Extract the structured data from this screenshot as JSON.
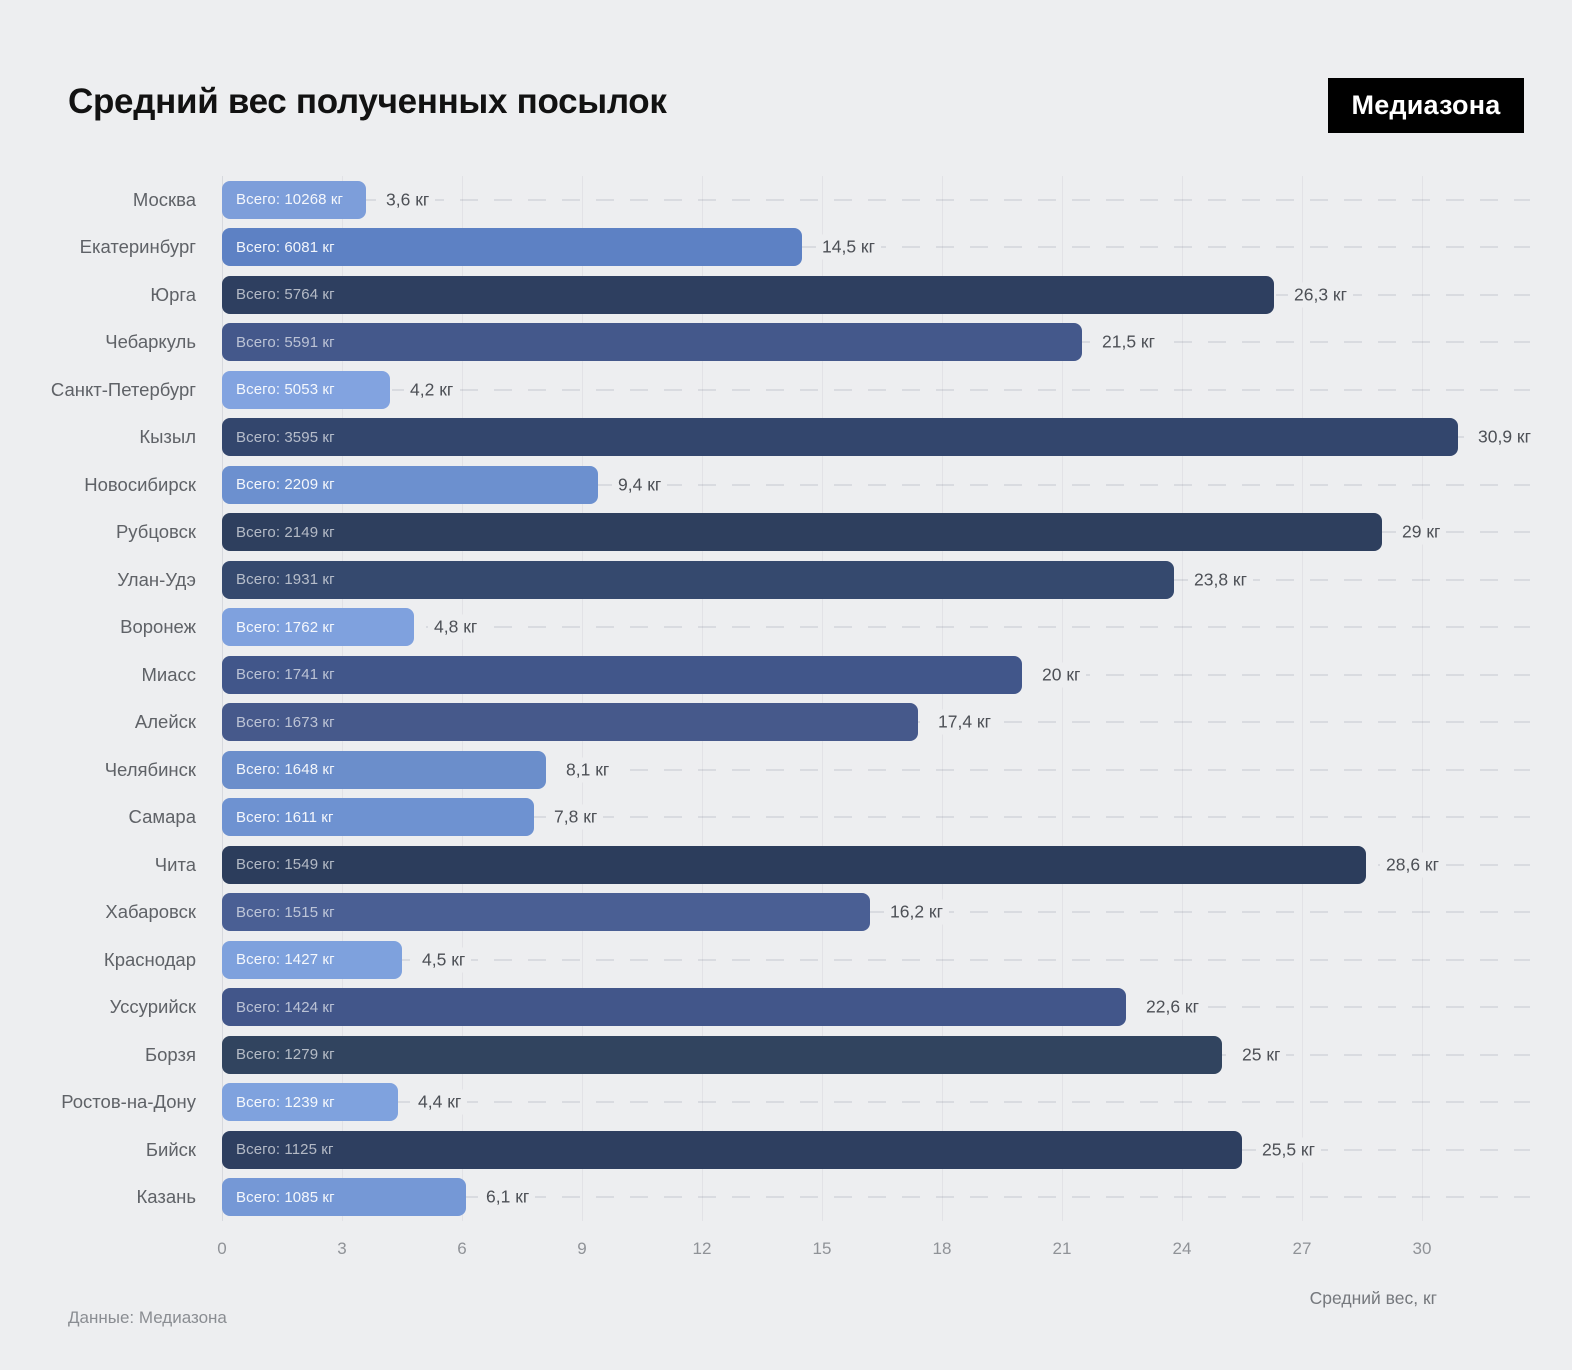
{
  "header": {
    "title": "Средний вес полученных посылок",
    "logo": "Медиазона"
  },
  "footer": {
    "source": "Данные: Медиазона"
  },
  "chart_data": {
    "type": "bar",
    "orientation": "horizontal",
    "title": "Средний вес полученных посылок",
    "xlabel": "Средний вес, кг",
    "xlim": [
      0,
      30
    ],
    "x_ticks": [
      0,
      3,
      6,
      9,
      12,
      15,
      18,
      21,
      24,
      27,
      30
    ],
    "grid": "dashed horizontal row lines and faint vertical tick lines",
    "categories": [
      "Москва",
      "Екатеринбург",
      "Юрга",
      "Чебаркуль",
      "Санкт-Петербург",
      "Кызыл",
      "Новосибирск",
      "Рубцовск",
      "Улан-Удэ",
      "Воронеж",
      "Миасс",
      "Алейск",
      "Челябинск",
      "Самара",
      "Чита",
      "Хабаровск",
      "Краснодар",
      "Уссурийск",
      "Борзя",
      "Ростов-на-Дону",
      "Бийск",
      "Казань"
    ],
    "values": [
      3.6,
      14.5,
      26.3,
      21.5,
      4.2,
      30.9,
      9.4,
      29,
      23.8,
      4.8,
      20,
      17.4,
      8.1,
      7.8,
      28.6,
      16.2,
      4.5,
      22.6,
      25,
      4.4,
      25.5,
      6.1
    ],
    "value_labels": [
      "3,6 кг",
      "14,5 кг",
      "26,3 кг",
      "21,5 кг",
      "4,2 кг",
      "30,9 кг",
      "9,4 кг",
      "29 кг",
      "23,8 кг",
      "4,8 кг",
      "20 кг",
      "17,4 кг",
      "8,1 кг",
      "7,8 кг",
      "28,6 кг",
      "16,2 кг",
      "4,5 кг",
      "22,6 кг",
      "25 кг",
      "4,4 кг",
      "25,5 кг",
      "6,1 кг"
    ],
    "totals_kg": [
      10268,
      6081,
      5764,
      5591,
      5053,
      3595,
      2209,
      2149,
      1931,
      1762,
      1741,
      1673,
      1648,
      1611,
      1549,
      1515,
      1427,
      1424,
      1279,
      1239,
      1125,
      1085
    ],
    "bar_labels": [
      "Всего: 10268 кг",
      "Всего: 6081 кг",
      "Всего: 5764 кг",
      "Всего: 5591 кг",
      "Всего: 5053 кг",
      "Всего: 3595 кг",
      "Всего: 2209 кг",
      "Всего: 2149 кг",
      "Всего: 1931 кг",
      "Всего: 1762 кг",
      "Всего: 1741 кг",
      "Всего: 1673 кг",
      "Всего: 1648 кг",
      "Всего: 1611 кг",
      "Всего: 1549 кг",
      "Всего: 1515 кг",
      "Всего: 1427 кг",
      "Всего: 1424 кг",
      "Всего: 1279 кг",
      "Всего: 1239 кг",
      "Всего: 1125 кг",
      "Всего: 1085 кг"
    ],
    "bar_colors": [
      "#7d9eda",
      "#5d81c4",
      "#2e3f60",
      "#44588b",
      "#82a3e0",
      "#33466d",
      "#6c90cf",
      "#2e3f5e",
      "#35496e",
      "#7fa1de",
      "#41568a",
      "#46598b",
      "#6b8ecb",
      "#6e92d1",
      "#2c3d5c",
      "#4a5f94",
      "#7ea1dd",
      "#42568a",
      "#31445f",
      "#7fa2de",
      "#2e3f60",
      "#7598d6"
    ],
    "legend": null
  },
  "colors": {
    "background": "#edeef0",
    "title_text": "#121212",
    "logo_background": "#000000",
    "logo_text": "#ffffff",
    "category_text": "#5f6267",
    "value_text": "#4d5056",
    "tick_text": "#8f9297",
    "bar_label_bright": "rgba(255,255,255,0.92)",
    "bar_label_dim": "rgba(255,255,255,0.64)"
  }
}
